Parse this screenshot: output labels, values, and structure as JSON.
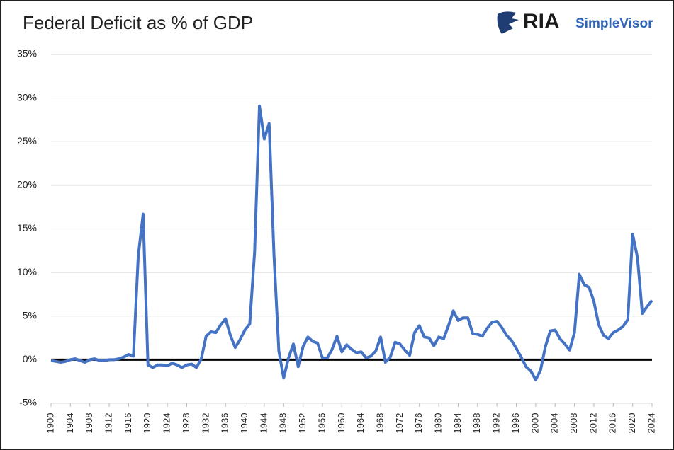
{
  "logo": {
    "brand": "RIA",
    "product": "SimpleVisor"
  },
  "chart_data": {
    "type": "line",
    "title": "Federal Deficit as % of GDP",
    "x": [
      1900,
      1901,
      1902,
      1903,
      1904,
      1905,
      1906,
      1907,
      1908,
      1909,
      1910,
      1911,
      1912,
      1913,
      1914,
      1915,
      1916,
      1917,
      1918,
      1919,
      1920,
      1921,
      1922,
      1923,
      1924,
      1925,
      1926,
      1927,
      1928,
      1929,
      1930,
      1931,
      1932,
      1933,
      1934,
      1935,
      1936,
      1937,
      1938,
      1939,
      1940,
      1941,
      1942,
      1943,
      1944,
      1945,
      1946,
      1947,
      1948,
      1949,
      1950,
      1951,
      1952,
      1953,
      1954,
      1955,
      1956,
      1957,
      1958,
      1959,
      1960,
      1961,
      1962,
      1963,
      1964,
      1965,
      1966,
      1967,
      1968,
      1969,
      1970,
      1971,
      1972,
      1973,
      1974,
      1975,
      1976,
      1977,
      1978,
      1979,
      1980,
      1981,
      1982,
      1983,
      1984,
      1985,
      1986,
      1987,
      1988,
      1989,
      1990,
      1991,
      1992,
      1993,
      1994,
      1995,
      1996,
      1997,
      1998,
      1999,
      2000,
      2001,
      2002,
      2003,
      2004,
      2005,
      2006,
      2007,
      2008,
      2009,
      2010,
      2011,
      2012,
      2013,
      2014,
      2015,
      2016,
      2017,
      2018,
      2019,
      2020,
      2021,
      2022,
      2023,
      2024
    ],
    "series": [
      {
        "name": "Federal Deficit as % of GDP",
        "color": "#4472c4",
        "values": [
          -0.1,
          -0.2,
          -0.3,
          -0.2,
          0,
          0.1,
          -0.1,
          -0.3,
          0,
          0.1,
          -0.1,
          -0.1,
          0,
          0,
          0.1,
          0.3,
          0.6,
          0.4,
          11.9,
          16.7,
          -0.6,
          -0.9,
          -0.6,
          -0.6,
          -0.7,
          -0.4,
          -0.6,
          -0.9,
          -0.6,
          -0.5,
          -0.9,
          0.1,
          2.7,
          3.2,
          3.1,
          4.0,
          4.7,
          2.8,
          1.4,
          2.3,
          3.4,
          4.1,
          12.3,
          29.1,
          25.3,
          27.1,
          12.0,
          1.0,
          -2.1,
          0.2,
          1.8,
          -0.8,
          1.5,
          2.6,
          2.1,
          1.9,
          0.2,
          0.2,
          1.2,
          2.7,
          0.9,
          1.7,
          1.2,
          0.8,
          0.9,
          0.2,
          0.4,
          1.0,
          2.6,
          -0.3,
          0.3,
          2.0,
          1.8,
          1.1,
          0.5,
          3.1,
          3.9,
          2.6,
          2.5,
          1.6,
          2.6,
          2.4,
          3.9,
          5.6,
          4.5,
          4.8,
          4.8,
          3.0,
          2.9,
          2.7,
          3.6,
          4.3,
          4.4,
          3.7,
          2.8,
          2.2,
          1.3,
          0.3,
          -0.8,
          -1.3,
          -2.3,
          -1.2,
          1.5,
          3.3,
          3.4,
          2.4,
          1.8,
          1.1,
          3.1,
          9.8,
          8.6,
          8.3,
          6.7,
          4.0,
          2.8,
          2.4,
          3.1,
          3.4,
          3.8,
          4.6,
          14.4,
          11.7,
          5.3,
          6.1,
          6.8
        ]
      }
    ],
    "xlim": [
      1900,
      2024
    ],
    "xticks": [
      1900,
      1904,
      1908,
      1912,
      1916,
      1920,
      1924,
      1928,
      1932,
      1936,
      1940,
      1944,
      1948,
      1952,
      1956,
      1960,
      1964,
      1968,
      1972,
      1976,
      1980,
      1984,
      1988,
      1992,
      1996,
      2000,
      2004,
      2008,
      2012,
      2016,
      2020,
      2024
    ],
    "ylim": [
      -5,
      35
    ],
    "yticks": [
      {
        "value": -5,
        "label": "-5%"
      },
      {
        "value": 0,
        "label": "0%"
      },
      {
        "value": 5,
        "label": "5%"
      },
      {
        "value": 10,
        "label": "10%"
      },
      {
        "value": 15,
        "label": "15%"
      },
      {
        "value": 20,
        "label": "20%"
      },
      {
        "value": 25,
        "label": "25%"
      },
      {
        "value": 30,
        "label": "30%"
      },
      {
        "value": 35,
        "label": "35%"
      }
    ],
    "grid": true
  }
}
